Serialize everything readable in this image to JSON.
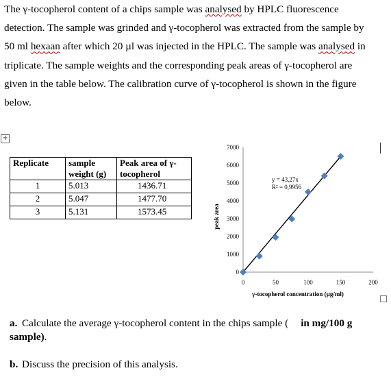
{
  "intro": {
    "line1a": "The γ-tocopherol content of a chips sample was ",
    "line1b": "analysed",
    "line1c": " by HPLC fluorescence",
    "line2": "detection. The sample was grinded and γ-tocopherol was extracted from the sample by",
    "line3a": "50 ml ",
    "line3b": "hexaan",
    "line3c": " after which 20 µl was injected in the HPLC. The sample was ",
    "line3d": "analysed",
    "line3e": " in",
    "line4": "triplicate. The sample weights and the corresponding peak areas of γ-tocopherol are",
    "line5": "given in the table below. The calibration curve of γ-tocopherol is shown in the figure",
    "line6": "below."
  },
  "table": {
    "headers": [
      "Replicate",
      "sample weight (g)",
      "Peak area of γ-tocopherol"
    ],
    "rows": [
      [
        "1",
        "5.013",
        "1436.71"
      ],
      [
        "2",
        "5.047",
        "1477.70"
      ],
      [
        "3",
        "5.131",
        "1573.45"
      ]
    ]
  },
  "chart_data": {
    "type": "scatter",
    "xlabel": "γ-tocopherol concentration (µg/ml)",
    "ylabel": "peak area",
    "xlim": [
      0,
      200
    ],
    "ylim": [
      0,
      7000
    ],
    "xticks": [
      "0",
      "50",
      "100",
      "150",
      "200"
    ],
    "yticks": [
      "0",
      "1000",
      "2000",
      "3000",
      "4000",
      "5000",
      "6000",
      "7000"
    ],
    "x": [
      0,
      25,
      50,
      75,
      100,
      125,
      150
    ],
    "y": [
      0,
      900,
      1950,
      2980,
      4500,
      5400,
      6500
    ],
    "trendline": {
      "equation": "y = 43,27x",
      "r2": "R² = 0,9956",
      "slope": 43.27
    },
    "marker_color": "#4f81bd",
    "line_color": "#000000"
  },
  "questions": {
    "a_label": "a.",
    "a_text_1": "Calculate the average γ-tocopherol content in the chips sample (",
    "a_bold": "in mg/100 g sample)",
    "a_text_2": ".",
    "b_label": "b.",
    "b_text": "Discuss the precision of this analysis."
  }
}
